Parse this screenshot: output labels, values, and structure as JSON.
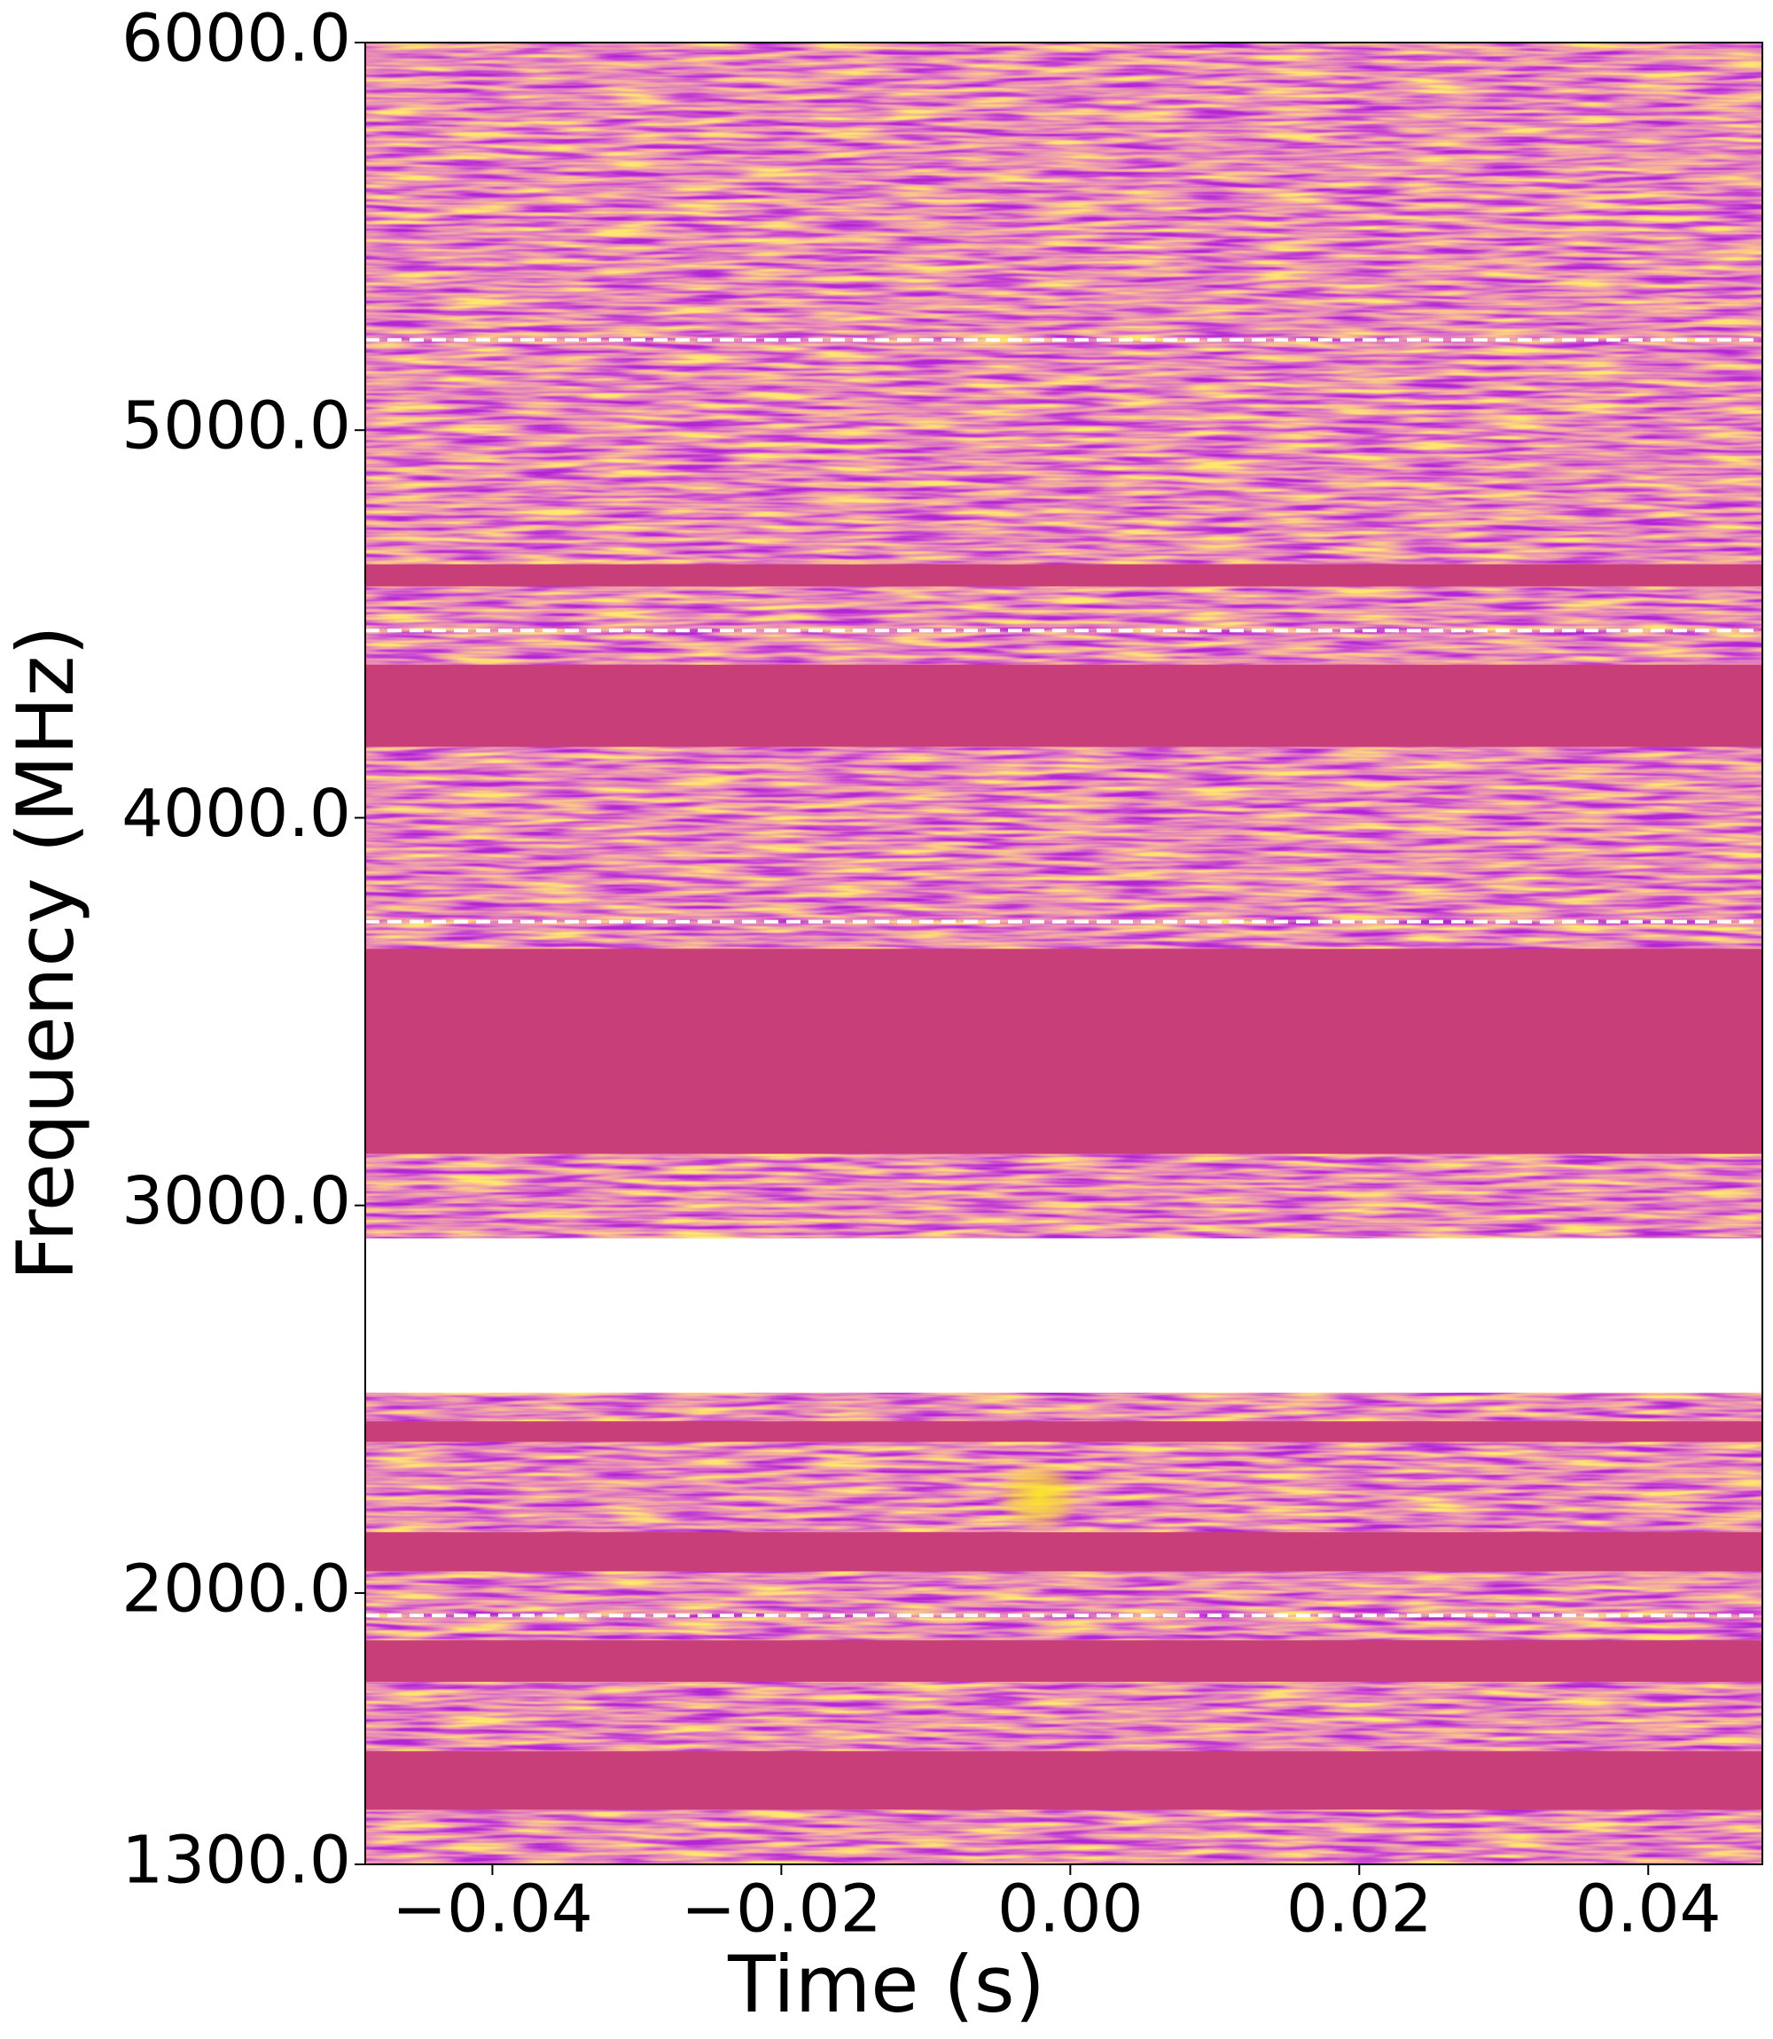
{
  "chart_data": {
    "type": "dynamic_spectrum",
    "xlabel": "Time (s)",
    "ylabel": "Frequency (MHz)",
    "xlim": [
      -0.0488,
      0.0479
    ],
    "ylim": [
      1300,
      6000
    ],
    "xticks": [
      {
        "value": -0.04,
        "label": "−0.04"
      },
      {
        "value": -0.02,
        "label": "−0.02"
      },
      {
        "value": 0,
        "label": "0.00"
      },
      0.02,
      0.04
    ],
    "yticks": [
      {
        "value": 1300,
        "label": "1300.0"
      },
      {
        "value": 2000,
        "label": "2000.0"
      },
      {
        "value": 3000,
        "label": "3000.0"
      },
      {
        "value": 4000,
        "label": "4000.0"
      },
      {
        "value": 5000,
        "label": "5000.0"
      },
      {
        "value": 6000,
        "label": "6000.0"
      }
    ],
    "colormap": "plasma",
    "mask_color": "#c83e79",
    "masked_bands": [
      [
        4597,
        4654
      ],
      [
        4183,
        4395
      ],
      [
        3133,
        3662
      ],
      [
        2390,
        2443
      ],
      [
        2056,
        2157
      ],
      [
        1771,
        1878
      ],
      [
        1441,
        1592
      ]
    ],
    "missing_band": [
      2517,
      2915
    ],
    "marker_color": "#ffffff",
    "markers": [
      5233,
      4483,
      3732,
      1942
    ],
    "burst": {
      "time": [
        -0.0051,
        0.0008
      ],
      "freq": [
        2157,
        2343
      ],
      "color": "#fde725"
    }
  }
}
